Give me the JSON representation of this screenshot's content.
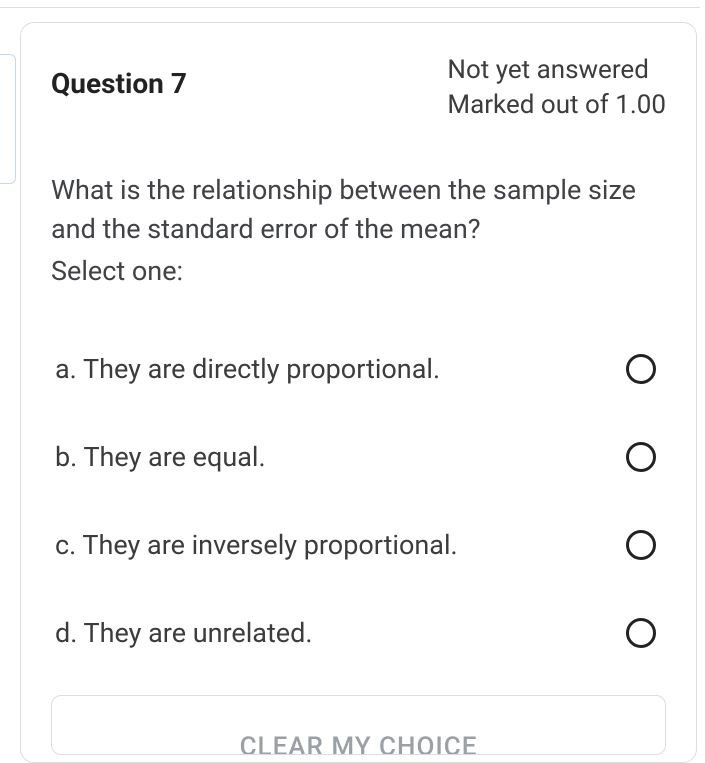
{
  "header": {
    "title": "Question 7",
    "status_line1": "Not yet answered",
    "status_line2": "Marked out of 1.00"
  },
  "prompt": "What is the relationship between the sample size and the standard error of the mean?",
  "select_one": "Select one:",
  "options": [
    {
      "letter": "a",
      "text": "a. They are directly proportional."
    },
    {
      "letter": "b",
      "text": "b. They are equal."
    },
    {
      "letter": "c",
      "text": "c. They are inversely proportional."
    },
    {
      "letter": "d",
      "text": "d. They are unrelated."
    }
  ],
  "clear_label": "CLEAR MY CHOICE",
  "colors": {
    "border": "#dcdde1",
    "text": "#3c3c3c",
    "muted": "#9aa0a6",
    "radio_border": "#222222",
    "marker_border": "#c9d6ef",
    "background": "#ffffff"
  }
}
